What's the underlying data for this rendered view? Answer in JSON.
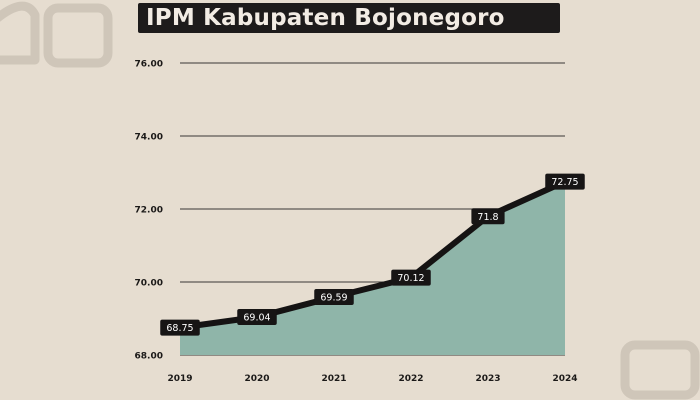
{
  "chart_data": {
    "type": "area",
    "title": "IPM Kabupaten Bojonegoro",
    "xlabel": "",
    "ylabel": "",
    "categories": [
      "2019",
      "2020",
      "2021",
      "2022",
      "2023",
      "2024"
    ],
    "series": [
      {
        "values": [
          68.75,
          69.04,
          69.59,
          70.12,
          71.8,
          72.75
        ]
      }
    ],
    "data_labels": [
      "68.75",
      "69.04",
      "69.59",
      "70.12",
      "71.8",
      "72.75"
    ],
    "yticks": [
      "68.00",
      "70.00",
      "72.00",
      "74.00",
      "76.00"
    ],
    "ytick_values": [
      68,
      70,
      72,
      74,
      76
    ],
    "ylim": [
      68,
      76
    ],
    "grid": true,
    "colors": {
      "background": "#e6ddd0",
      "area": "#8fb5a9",
      "line": "#151313",
      "label_bg": "#171515",
      "label_text": "#ffffff",
      "grid": "#3a3836",
      "title_bg": "#1d1b1b",
      "title_text": "#f2ece4",
      "tick_text": "#1b1918"
    }
  }
}
